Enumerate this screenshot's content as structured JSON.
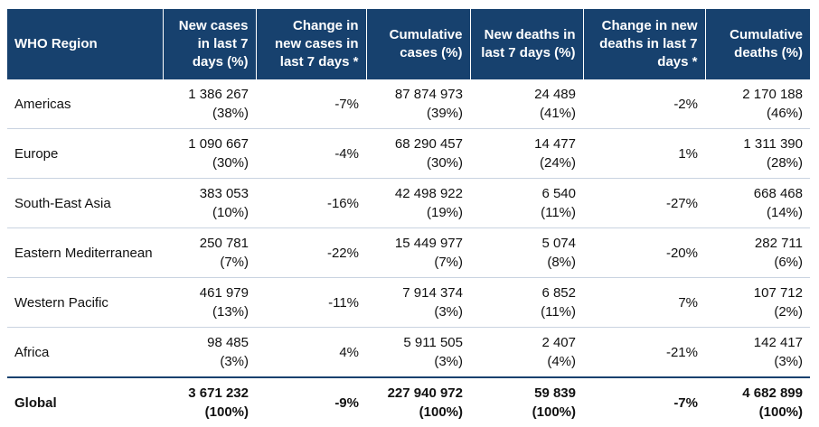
{
  "table": {
    "columns": [
      "WHO Region",
      "New cases in last 7 days (%)",
      "Change in new cases in last 7 days *",
      "Cumulative cases (%)",
      "New deaths in last 7 days (%)",
      "Change in new deaths in last 7 days *",
      "Cumulative deaths (%)"
    ],
    "rows": [
      [
        "Americas",
        [
          "1 386 267",
          "(38%)"
        ],
        "-7%",
        [
          "87 874 973",
          "(39%)"
        ],
        [
          "24 489",
          "(41%)"
        ],
        "-2%",
        [
          "2 170 188",
          "(46%)"
        ]
      ],
      [
        "Europe",
        [
          "1 090 667",
          "(30%)"
        ],
        "-4%",
        [
          "68 290 457",
          "(30%)"
        ],
        [
          "14 477",
          "(24%)"
        ],
        "1%",
        [
          "1 311 390",
          "(28%)"
        ]
      ],
      [
        "South-East Asia",
        [
          "383 053",
          "(10%)"
        ],
        "-16%",
        [
          "42 498 922",
          "(19%)"
        ],
        [
          "6 540",
          "(11%)"
        ],
        "-27%",
        [
          "668 468",
          "(14%)"
        ]
      ],
      [
        "Eastern Mediterranean",
        [
          "250 781",
          "(7%)"
        ],
        "-22%",
        [
          "15 449 977",
          "(7%)"
        ],
        [
          "5 074",
          "(8%)"
        ],
        "-20%",
        [
          "282 711",
          "(6%)"
        ]
      ],
      [
        "Western Pacific",
        [
          "461 979",
          "(13%)"
        ],
        "-11%",
        [
          "7 914 374",
          "(3%)"
        ],
        [
          "6 852",
          "(11%)"
        ],
        "7%",
        [
          "107 712",
          "(2%)"
        ]
      ],
      [
        "Africa",
        [
          "98 485",
          "(3%)"
        ],
        "4%",
        [
          "5 911 505",
          "(3%)"
        ],
        [
          "2 407",
          "(4%)"
        ],
        "-21%",
        [
          "142 417",
          "(3%)"
        ]
      ],
      [
        "Global",
        [
          "3 671 232",
          "(100%)"
        ],
        "-9%",
        [
          "227 940 972",
          "(100%)"
        ],
        [
          "59 839",
          "(100%)"
        ],
        "-7%",
        [
          "4 682 899",
          "(100%)"
        ]
      ]
    ]
  }
}
